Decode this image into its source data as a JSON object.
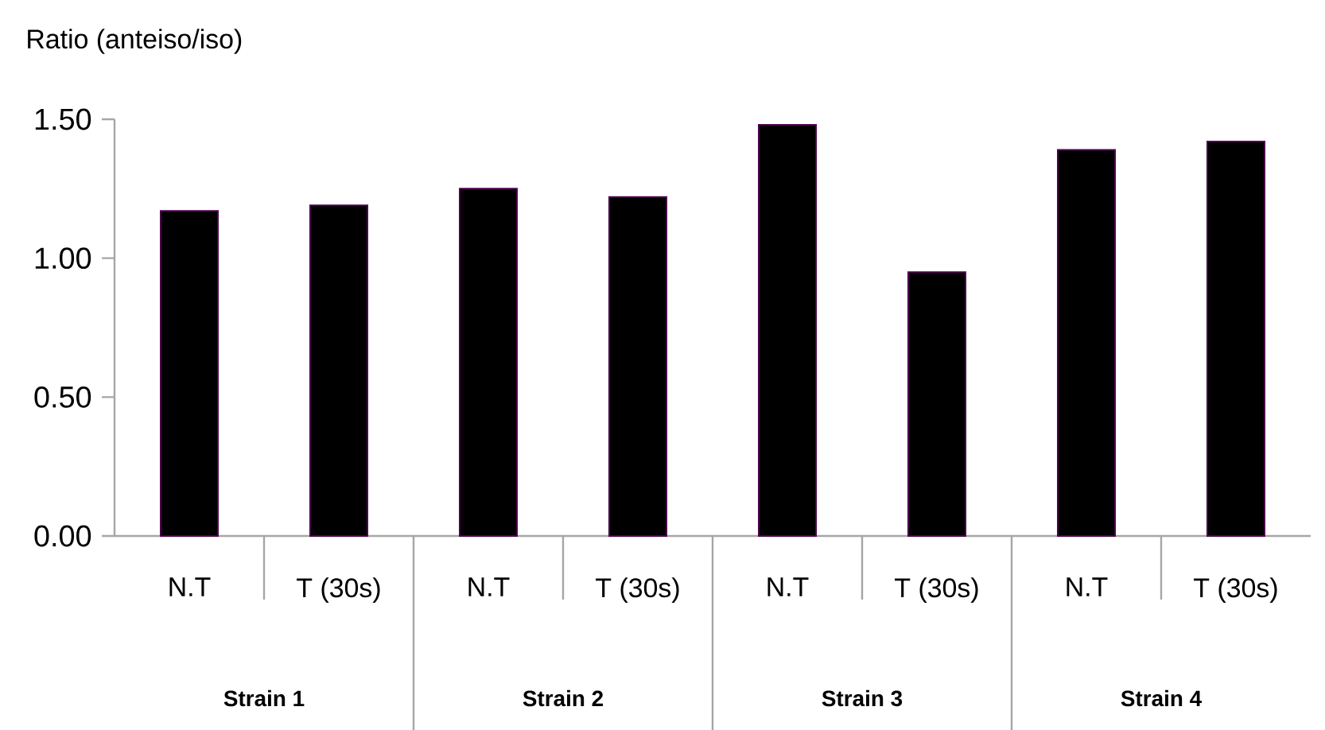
{
  "chart_data": {
    "type": "bar",
    "ylabel": "Ratio (anteiso/iso)",
    "categories": [
      "N.T",
      "T (30s)",
      "N.T",
      "T (30s)",
      "N.T",
      "T (30s)",
      "N.T",
      "T (30s)"
    ],
    "values": [
      1.17,
      1.19,
      1.25,
      1.22,
      1.48,
      0.95,
      1.39,
      1.42
    ],
    "color": "#000000",
    "ylim": [
      0,
      1.5
    ],
    "yticks": [
      {
        "value": 0,
        "label": "0.00"
      },
      {
        "value": 0.5,
        "label": "0.50"
      },
      {
        "value": 1,
        "label": "1.00"
      },
      {
        "value": 1.5,
        "label": "1.50"
      }
    ],
    "grid": false,
    "annotations": [
      "Strain 1",
      "Strain 2",
      "Strain 3",
      "Strain 4"
    ]
  }
}
